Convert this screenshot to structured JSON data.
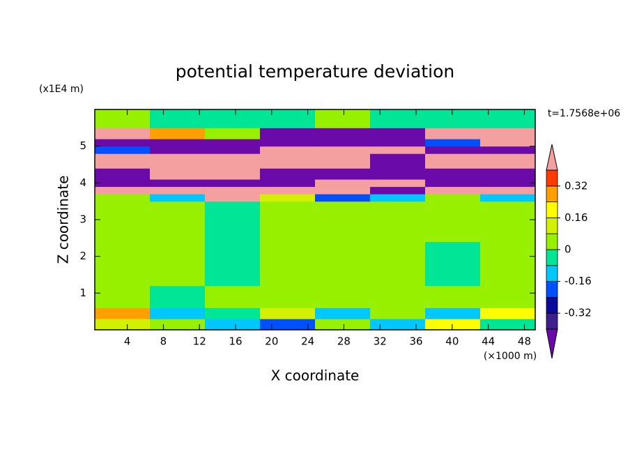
{
  "chart_data": {
    "type": "contourf",
    "title": "potential temperature deviation",
    "x_label": "X coordinate",
    "y_label": "Z coordinate",
    "x_unit": "(×1000 m)",
    "y_unit": "(x1E4 m)",
    "annotation": "t=1.7568e+06",
    "xlim": [
      0.4,
      49.2
    ],
    "ylim": [
      0,
      6
    ],
    "xticks": [
      4,
      8,
      12,
      16,
      20,
      24,
      28,
      32,
      36,
      40,
      44,
      48
    ],
    "yticks": [
      1,
      2,
      3,
      4,
      5
    ],
    "field": {
      "x_edges": [
        0.4,
        6.5,
        12.6,
        18.7,
        24.8,
        30.9,
        37,
        43.1,
        49.2
      ],
      "y_edges": [
        0,
        0.3,
        0.6,
        1.2,
        2.4,
        3.5,
        3.7,
        3.9,
        4.1,
        4.4,
        4.8,
        5.0,
        5.2,
        5.5,
        6.0
      ],
      "values": [
        [
          0.1,
          0.0,
          -0.1,
          -0.2,
          0.05,
          -0.1,
          0.2,
          -0.05
        ],
        [
          0.3,
          -0.1,
          -0.05,
          0.1,
          -0.1,
          0.05,
          -0.1,
          0.2
        ],
        [
          0.05,
          -0.05,
          0.05,
          0.05,
          0.0,
          0.05,
          0.05,
          0.05
        ],
        [
          0.05,
          0.05,
          -0.05,
          0.05,
          0.05,
          0.05,
          -0.05,
          0.05
        ],
        [
          0.05,
          0.05,
          -0.05,
          0.05,
          0.05,
          0.05,
          0.05,
          0.05
        ],
        [
          0.05,
          -0.1,
          0.45,
          0.1,
          -0.2,
          -0.1,
          0.05,
          -0.1
        ],
        [
          0.45,
          0.45,
          0.45,
          0.45,
          0.45,
          -0.45,
          0.45,
          0.45
        ],
        [
          -0.45,
          -0.45,
          -0.45,
          -0.45,
          0.45,
          0.45,
          -0.45,
          -0.45
        ],
        [
          -0.45,
          0.45,
          0.45,
          -0.45,
          -0.45,
          -0.45,
          -0.45,
          -0.45
        ],
        [
          0.45,
          0.45,
          0.45,
          0.45,
          0.45,
          -0.45,
          0.45,
          0.45
        ],
        [
          -0.2,
          -0.45,
          -0.45,
          0.45,
          0.45,
          0.45,
          -0.45,
          -0.45
        ],
        [
          -0.45,
          -0.45,
          -0.45,
          -0.45,
          -0.45,
          -0.45,
          -0.2,
          0.45
        ],
        [
          0.45,
          0.3,
          0.05,
          -0.45,
          -0.45,
          -0.45,
          0.45,
          0.45
        ],
        [
          0.05,
          -0.05,
          -0.05,
          -0.05,
          0.05,
          -0.05,
          -0.05,
          -0.05
        ]
      ]
    },
    "colorbar": {
      "levels": [
        -0.4,
        -0.32,
        -0.24,
        -0.16,
        -0.08,
        0,
        0.08,
        0.16,
        0.24,
        0.32,
        0.4
      ],
      "colors": [
        "#3c1e8c",
        "#0a0a9e",
        "#0050ff",
        "#00c8ff",
        "#00e696",
        "#96f000",
        "#d2f000",
        "#ffff00",
        "#ffa000",
        "#ff3c00"
      ],
      "under_color": "#6a0aa8",
      "over_color": "#f5a0a0",
      "ticks": [
        0.32,
        0.16,
        0,
        -0.16,
        -0.32
      ]
    }
  }
}
